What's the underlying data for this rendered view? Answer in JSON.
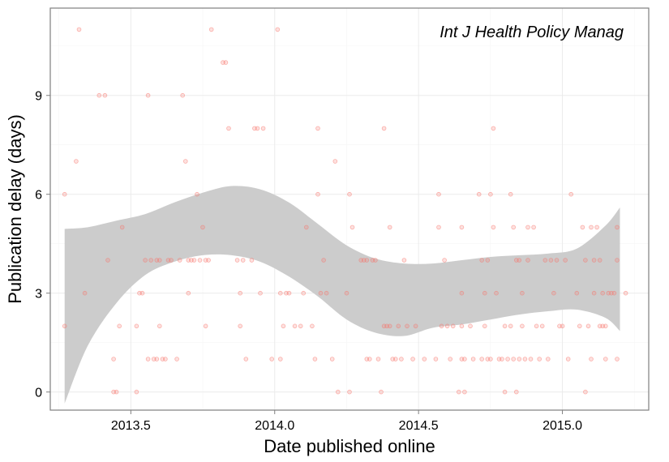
{
  "chart_data": {
    "type": "scatter",
    "title": "",
    "annotation": "Int J Health Policy Manag",
    "xlabel": "Date published online",
    "ylabel": "Publication delay (days)",
    "xlim": [
      2013.22,
      2015.3
    ],
    "ylim": [
      -0.55,
      11.65
    ],
    "x_ticks": [
      2013.5,
      2014.0,
      2014.5,
      2015.0
    ],
    "x_tick_labels": [
      "2013.5",
      "2014.0",
      "2014.5",
      "2015.0"
    ],
    "y_ticks": [
      0,
      3,
      6,
      9
    ],
    "y_tick_labels": [
      "0",
      "3",
      "6",
      "9"
    ],
    "grid": true,
    "legend": "none",
    "colors": {
      "points": "#f8766d",
      "ribbon": "#cccccc",
      "frame": "#7f7f7f",
      "grid_major": "#ebebeb",
      "grid_minor": "#f5f5f5"
    },
    "points": [
      [
        2013.27,
        6
      ],
      [
        2013.27,
        2
      ],
      [
        2013.31,
        7
      ],
      [
        2013.32,
        11
      ],
      [
        2013.34,
        3
      ],
      [
        2013.39,
        9
      ],
      [
        2013.41,
        9
      ],
      [
        2013.42,
        4
      ],
      [
        2013.44,
        1
      ],
      [
        2013.44,
        0
      ],
      [
        2013.45,
        0
      ],
      [
        2013.46,
        2
      ],
      [
        2013.47,
        5
      ],
      [
        2013.52,
        2
      ],
      [
        2013.52,
        0
      ],
      [
        2013.53,
        3
      ],
      [
        2013.54,
        3
      ],
      [
        2013.55,
        4
      ],
      [
        2013.56,
        1
      ],
      [
        2013.56,
        9
      ],
      [
        2013.57,
        4
      ],
      [
        2013.58,
        1
      ],
      [
        2013.59,
        4
      ],
      [
        2013.59,
        1
      ],
      [
        2013.6,
        4
      ],
      [
        2013.6,
        2
      ],
      [
        2013.61,
        1
      ],
      [
        2013.62,
        1
      ],
      [
        2013.63,
        4
      ],
      [
        2013.64,
        4
      ],
      [
        2013.66,
        1
      ],
      [
        2013.67,
        4
      ],
      [
        2013.68,
        9
      ],
      [
        2013.69,
        7
      ],
      [
        2013.7,
        4
      ],
      [
        2013.7,
        3
      ],
      [
        2013.71,
        4
      ],
      [
        2013.72,
        4
      ],
      [
        2013.73,
        6
      ],
      [
        2013.74,
        4
      ],
      [
        2013.75,
        5
      ],
      [
        2013.76,
        4
      ],
      [
        2013.76,
        2
      ],
      [
        2013.77,
        4
      ],
      [
        2013.78,
        11
      ],
      [
        2013.82,
        10
      ],
      [
        2013.83,
        10
      ],
      [
        2013.84,
        8
      ],
      [
        2013.87,
        4
      ],
      [
        2013.88,
        3
      ],
      [
        2013.88,
        2
      ],
      [
        2013.89,
        4
      ],
      [
        2013.9,
        1
      ],
      [
        2013.92,
        4
      ],
      [
        2013.93,
        8
      ],
      [
        2013.94,
        8
      ],
      [
        2013.95,
        3
      ],
      [
        2013.96,
        8
      ],
      [
        2013.99,
        1
      ],
      [
        2014.01,
        11
      ],
      [
        2014.02,
        3
      ],
      [
        2014.02,
        1
      ],
      [
        2014.03,
        2
      ],
      [
        2014.04,
        3
      ],
      [
        2014.05,
        3
      ],
      [
        2014.07,
        2
      ],
      [
        2014.09,
        2
      ],
      [
        2014.1,
        3
      ],
      [
        2014.11,
        5
      ],
      [
        2014.13,
        2
      ],
      [
        2014.14,
        1
      ],
      [
        2014.15,
        8
      ],
      [
        2014.15,
        6
      ],
      [
        2014.16,
        3
      ],
      [
        2014.17,
        4
      ],
      [
        2014.18,
        3
      ],
      [
        2014.2,
        1
      ],
      [
        2014.21,
        7
      ],
      [
        2014.22,
        0
      ],
      [
        2014.25,
        3
      ],
      [
        2014.26,
        0
      ],
      [
        2014.26,
        6
      ],
      [
        2014.27,
        5
      ],
      [
        2014.3,
        4
      ],
      [
        2014.31,
        4
      ],
      [
        2014.32,
        1
      ],
      [
        2014.32,
        4
      ],
      [
        2014.33,
        1
      ],
      [
        2014.34,
        4
      ],
      [
        2014.35,
        4
      ],
      [
        2014.36,
        1
      ],
      [
        2014.37,
        0
      ],
      [
        2014.38,
        8
      ],
      [
        2014.38,
        2
      ],
      [
        2014.39,
        2
      ],
      [
        2014.4,
        5
      ],
      [
        2014.4,
        2
      ],
      [
        2014.41,
        1
      ],
      [
        2014.42,
        1
      ],
      [
        2014.43,
        2
      ],
      [
        2014.44,
        1
      ],
      [
        2014.45,
        4
      ],
      [
        2014.46,
        2
      ],
      [
        2014.48,
        1
      ],
      [
        2014.49,
        2
      ],
      [
        2014.52,
        1
      ],
      [
        2014.56,
        1
      ],
      [
        2014.57,
        6
      ],
      [
        2014.57,
        5
      ],
      [
        2014.58,
        2
      ],
      [
        2014.59,
        4
      ],
      [
        2014.6,
        2
      ],
      [
        2014.61,
        1
      ],
      [
        2014.62,
        2
      ],
      [
        2014.64,
        0
      ],
      [
        2014.65,
        2
      ],
      [
        2014.65,
        5
      ],
      [
        2014.65,
        3
      ],
      [
        2014.65,
        1
      ],
      [
        2014.66,
        0
      ],
      [
        2014.66,
        1
      ],
      [
        2014.68,
        2
      ],
      [
        2014.69,
        1
      ],
      [
        2014.71,
        6
      ],
      [
        2014.72,
        4
      ],
      [
        2014.72,
        1
      ],
      [
        2014.73,
        3
      ],
      [
        2014.73,
        2
      ],
      [
        2014.74,
        4
      ],
      [
        2014.74,
        1
      ],
      [
        2014.75,
        6
      ],
      [
        2014.75,
        1
      ],
      [
        2014.76,
        5
      ],
      [
        2014.76,
        8
      ],
      [
        2014.77,
        3
      ],
      [
        2014.78,
        1
      ],
      [
        2014.79,
        1
      ],
      [
        2014.8,
        0
      ],
      [
        2014.8,
        2
      ],
      [
        2014.81,
        1
      ],
      [
        2014.82,
        6
      ],
      [
        2014.82,
        2
      ],
      [
        2014.83,
        1
      ],
      [
        2014.83,
        5
      ],
      [
        2014.84,
        4
      ],
      [
        2014.84,
        0
      ],
      [
        2014.85,
        4
      ],
      [
        2014.85,
        1
      ],
      [
        2014.86,
        2
      ],
      [
        2014.86,
        3
      ],
      [
        2014.87,
        1
      ],
      [
        2014.88,
        5
      ],
      [
        2014.88,
        4
      ],
      [
        2014.89,
        1
      ],
      [
        2014.9,
        5
      ],
      [
        2014.91,
        2
      ],
      [
        2014.92,
        1
      ],
      [
        2014.93,
        2
      ],
      [
        2014.94,
        4
      ],
      [
        2014.95,
        1
      ],
      [
        2014.96,
        4
      ],
      [
        2014.97,
        3
      ],
      [
        2014.98,
        4
      ],
      [
        2014.99,
        2
      ],
      [
        2015.0,
        2
      ],
      [
        2015.01,
        4
      ],
      [
        2015.02,
        1
      ],
      [
        2015.03,
        6
      ],
      [
        2015.05,
        3
      ],
      [
        2015.06,
        2
      ],
      [
        2015.07,
        5
      ],
      [
        2015.08,
        0
      ],
      [
        2015.08,
        4
      ],
      [
        2015.09,
        2
      ],
      [
        2015.1,
        5
      ],
      [
        2015.1,
        1
      ],
      [
        2015.11,
        3
      ],
      [
        2015.11,
        4
      ],
      [
        2015.12,
        5
      ],
      [
        2015.13,
        2
      ],
      [
        2015.13,
        4
      ],
      [
        2015.14,
        2
      ],
      [
        2015.14,
        3
      ],
      [
        2015.15,
        2
      ],
      [
        2015.15,
        1
      ],
      [
        2015.16,
        3
      ],
      [
        2015.17,
        3
      ],
      [
        2015.18,
        3
      ],
      [
        2015.19,
        4
      ],
      [
        2015.19,
        1
      ],
      [
        2015.19,
        5
      ],
      [
        2015.22,
        3
      ]
    ],
    "smooth_band": {
      "x": [
        2013.27,
        2013.35,
        2013.45,
        2013.55,
        2013.65,
        2013.75,
        2013.85,
        2013.95,
        2014.05,
        2014.15,
        2014.25,
        2014.35,
        2014.45,
        2014.55,
        2014.65,
        2014.75,
        2014.85,
        2014.95,
        2015.05,
        2015.15,
        2015.2
      ],
      "upper": [
        4.95,
        5.0,
        5.2,
        5.4,
        5.75,
        6.05,
        6.25,
        6.15,
        5.75,
        5.1,
        4.45,
        4.05,
        3.9,
        3.9,
        4.0,
        4.1,
        4.15,
        4.2,
        4.35,
        5.05,
        5.6
      ],
      "lower": [
        -0.35,
        1.4,
        2.7,
        3.55,
        3.95,
        4.15,
        4.15,
        3.95,
        3.5,
        2.9,
        2.2,
        1.8,
        1.7,
        1.95,
        2.05,
        2.2,
        2.35,
        2.45,
        2.5,
        2.25,
        1.85
      ]
    }
  }
}
